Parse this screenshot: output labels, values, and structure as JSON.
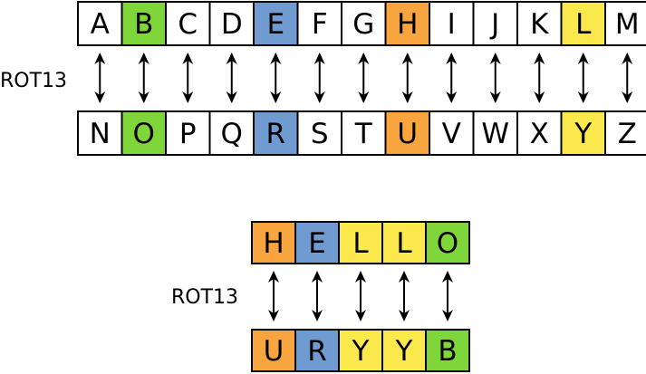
{
  "label": "ROT13",
  "colors": {
    "green": "#7fd63a",
    "blue": "#6f9bd1",
    "orange": "#f9a53f",
    "yellow": "#fbe84d",
    "white": "#ffffff",
    "stroke": "#000000"
  },
  "top_row": [
    {
      "letter": "A",
      "color": "white"
    },
    {
      "letter": "B",
      "color": "green"
    },
    {
      "letter": "C",
      "color": "white"
    },
    {
      "letter": "D",
      "color": "white"
    },
    {
      "letter": "E",
      "color": "blue"
    },
    {
      "letter": "F",
      "color": "white"
    },
    {
      "letter": "G",
      "color": "white"
    },
    {
      "letter": "H",
      "color": "orange"
    },
    {
      "letter": "I",
      "color": "white"
    },
    {
      "letter": "J",
      "color": "white"
    },
    {
      "letter": "K",
      "color": "white"
    },
    {
      "letter": "L",
      "color": "yellow"
    },
    {
      "letter": "M",
      "color": "white"
    }
  ],
  "bottom_row": [
    {
      "letter": "N",
      "color": "white"
    },
    {
      "letter": "O",
      "color": "green"
    },
    {
      "letter": "P",
      "color": "white"
    },
    {
      "letter": "Q",
      "color": "white"
    },
    {
      "letter": "R",
      "color": "blue"
    },
    {
      "letter": "S",
      "color": "white"
    },
    {
      "letter": "T",
      "color": "white"
    },
    {
      "letter": "U",
      "color": "orange"
    },
    {
      "letter": "V",
      "color": "white"
    },
    {
      "letter": "W",
      "color": "white"
    },
    {
      "letter": "X",
      "color": "white"
    },
    {
      "letter": "Y",
      "color": "yellow"
    },
    {
      "letter": "Z",
      "color": "white"
    }
  ],
  "example_plain": [
    {
      "letter": "H",
      "color": "orange"
    },
    {
      "letter": "E",
      "color": "blue"
    },
    {
      "letter": "L",
      "color": "yellow"
    },
    {
      "letter": "L",
      "color": "yellow"
    },
    {
      "letter": "O",
      "color": "green"
    }
  ],
  "example_cipher": [
    {
      "letter": "U",
      "color": "orange"
    },
    {
      "letter": "R",
      "color": "blue"
    },
    {
      "letter": "Y",
      "color": "yellow"
    },
    {
      "letter": "Y",
      "color": "yellow"
    },
    {
      "letter": "B",
      "color": "green"
    }
  ]
}
